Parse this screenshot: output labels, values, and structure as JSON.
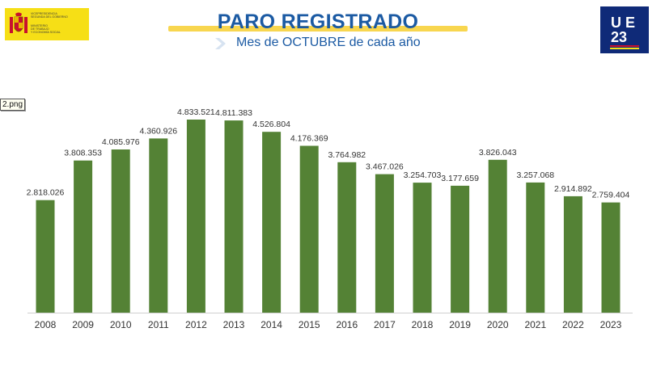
{
  "header": {
    "title": "PARO REGISTRADO",
    "subtitle": "Mes de OCTUBRE de cada año",
    "ministry_line1": "Vicepresidencia\nSegunda del Gobierno",
    "ministry_line2": "Ministerio\nde Trabajo\ny Economía Social",
    "ue_logo_top": "U E",
    "ue_logo_bottom": "23",
    "file_badge": "2.png"
  },
  "colors": {
    "bar": "#548235",
    "title": "#1b5aa3",
    "highlight": "#f8d64f",
    "ue_logo": "#0f2a78"
  },
  "chart_data": {
    "type": "bar",
    "categories": [
      "2008",
      "2009",
      "2010",
      "2011",
      "2012",
      "2013",
      "2014",
      "2015",
      "2016",
      "2017",
      "2018",
      "2019",
      "2020",
      "2021",
      "2022",
      "2023"
    ],
    "values": [
      2818026,
      3808353,
      4085976,
      4360926,
      4833521,
      4811383,
      4526804,
      4176369,
      3764982,
      3467026,
      3254703,
      3177659,
      3826043,
      3257068,
      2914892,
      2759404
    ],
    "value_labels": [
      "2.818.026",
      "3.808.353",
      "4.085.976",
      "4.360.926",
      "4.833.521",
      "4.811.383",
      "4.526.804",
      "4.176.369",
      "3.764.982",
      "3.467.026",
      "3.254.703",
      "3.177.659",
      "3.826.043",
      "3.257.068",
      "2.914.892",
      "2.759.404"
    ],
    "title": "PARO REGISTRADO",
    "subtitle": "Mes de OCTUBRE de cada año",
    "xlabel": "",
    "ylabel": "",
    "ylim": [
      0,
      4833521
    ],
    "grid": false,
    "legend": "none"
  }
}
